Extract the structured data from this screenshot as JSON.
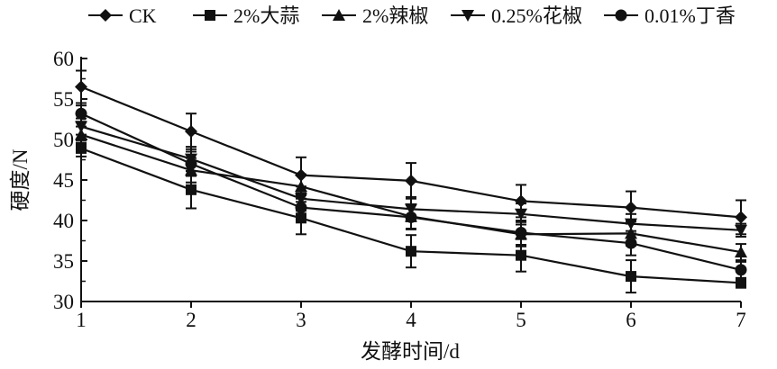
{
  "chart_data": {
    "type": "line",
    "title": "",
    "xlabel": "发酵时间/d",
    "ylabel": "硬度/N",
    "x": [
      1,
      2,
      3,
      4,
      5,
      6,
      7
    ],
    "xlim": [
      1,
      7
    ],
    "ylim": [
      30,
      60
    ],
    "yticks": [
      30,
      35,
      40,
      45,
      50,
      55,
      60
    ],
    "grid": false,
    "legend_position": "top",
    "series": [
      {
        "name": "CK",
        "marker": "diamond",
        "values": [
          56.5,
          51.0,
          45.6,
          44.9,
          42.4,
          41.6,
          40.4
        ],
        "error": [
          2.0,
          2.2,
          2.2,
          2.2,
          2.0,
          2.0,
          2.1
        ]
      },
      {
        "name": "2%大蒜",
        "marker": "square",
        "values": [
          48.9,
          43.8,
          40.3,
          36.2,
          35.7,
          33.1,
          32.3
        ],
        "error": [
          1.0,
          2.3,
          2.0,
          2.0,
          2.0,
          2.0,
          0.6
        ]
      },
      {
        "name": "2%辣椒",
        "marker": "triangle-up",
        "values": [
          50.6,
          46.2,
          44.2,
          40.5,
          38.3,
          38.4,
          36.1
        ],
        "error": [
          1.0,
          1.5,
          1.5,
          1.5,
          1.5,
          1.5,
          1.0
        ]
      },
      {
        "name": "0.25%花椒",
        "marker": "triangle-down",
        "values": [
          51.6,
          47.6,
          42.7,
          41.4,
          40.8,
          39.6,
          38.8
        ],
        "error": [
          1.0,
          1.5,
          1.5,
          1.5,
          1.3,
          1.2,
          0.8
        ]
      },
      {
        "name": "0.01%丁香",
        "marker": "circle",
        "values": [
          53.2,
          47.0,
          41.6,
          40.4,
          38.5,
          37.2,
          33.9
        ],
        "error": [
          1.0,
          1.5,
          1.5,
          1.5,
          1.5,
          1.5,
          1.0
        ]
      }
    ]
  }
}
